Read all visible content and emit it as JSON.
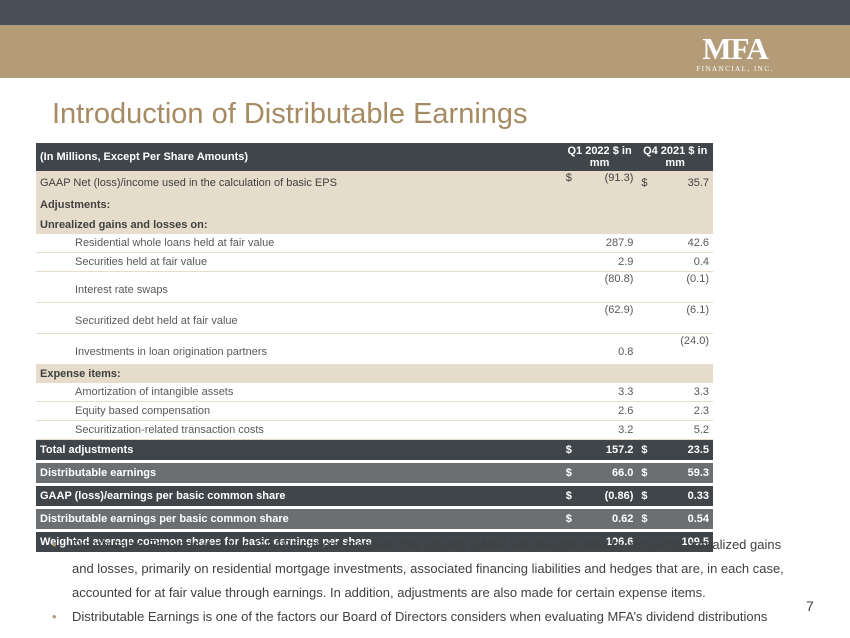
{
  "header": {
    "logo_mark": "MFA",
    "logo_sub": "FINANCIAL, INC."
  },
  "title": "Introduction of Distributable Earnings",
  "table": {
    "header": {
      "label": "(In Millions, Except Per Share Amounts)",
      "col1": "Q1 2022 $ in mm",
      "col2": "Q4 2021 $ in mm"
    },
    "gaap_net": {
      "label": "GAAP Net (loss)/income used in the calculation of basic EPS",
      "sym1": "$",
      "v1": "(91.3)",
      "sym2": "$",
      "v2": "35.7"
    },
    "adjustments_label": "Adjustments:",
    "unrealized_label": "Unrealized gains and losses on:",
    "unrealized_rows": [
      {
        "label": "Residential whole loans held at fair value",
        "v1": "287.9",
        "v2": "42.6"
      },
      {
        "label": "Securities held at fair value",
        "v1": "2.9",
        "v2": "0.4"
      },
      {
        "label": "Interest rate swaps",
        "v1": "(80.8)",
        "v2": "(0.1)"
      },
      {
        "label": "Securitized debt held at fair value",
        "v1": "(62.9)",
        "v2": "(6.1)"
      },
      {
        "label": "Investments in loan origination partners",
        "v1": "0.8",
        "v2": "(24.0)"
      }
    ],
    "expense_label": "Expense items:",
    "expense_rows": [
      {
        "label": "Amortization of intangible assets",
        "v1": "3.3",
        "v2": "3.3"
      },
      {
        "label": "Equity based compensation",
        "v1": "2.6",
        "v2": "2.3"
      },
      {
        "label": "Securitization-related transaction costs",
        "v1": "3.2",
        "v2": "5.2"
      }
    ],
    "totals": [
      {
        "label": "Total adjustments",
        "sym1": "$",
        "v1": "157.2",
        "sym2": "$",
        "v2": "23.5"
      },
      {
        "label": "Distributable earnings",
        "sym1": "$",
        "v1": "66.0",
        "sym2": "$",
        "v2": "59.3"
      },
      {
        "label": "GAAP (loss)/earnings per basic common share",
        "sym1": "$",
        "v1": "(0.86)",
        "sym2": "$",
        "v2": "0.33"
      },
      {
        "label": "Distributable earnings per basic common share",
        "sym1": "$",
        "v1": "0.62",
        "sym2": "$",
        "v2": "0.54"
      },
      {
        "label": "Weighted average common shares for basic earnings per share",
        "sym1": "",
        "v1": "106.6",
        "sym2": "",
        "v2": "109.5"
      }
    ]
  },
  "bullets": [
    "Distributable Earnings is a Non-GAAP financial measure that adjusts GAAP net (loss)/income by removing unrealized gains and losses, primarily on residential mortgage investments, associated financing liabilities and hedges that are, in each case, accounted for at fair value through earnings.  In addition, adjustments are also made for certain expense items.",
    "Distributable Earnings is one of the factors our Board of Directors considers when evaluating MFA’s dividend distributions"
  ],
  "page_number": "7",
  "colors": {
    "accent_gold": "#b49c78",
    "title_gold": "#a68b62",
    "dark_bar": "#4a4f57",
    "stripe": "#e6dccb"
  }
}
